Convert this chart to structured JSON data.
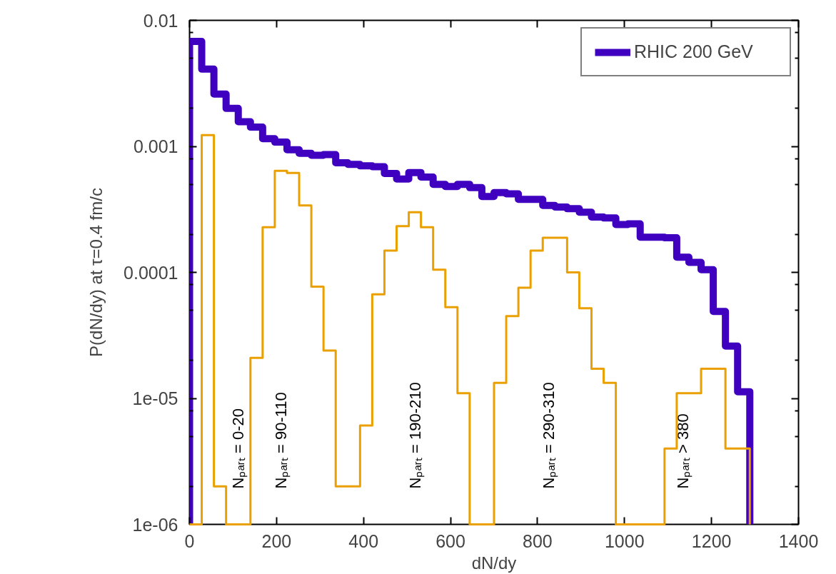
{
  "chart_data": {
    "type": "histogram",
    "xlabel": "dN/dy",
    "ylabel": "P(dN/dy) at τ=0.4 fm/c",
    "bins": [
      0,
      28,
      56,
      84,
      112,
      140,
      168,
      196,
      224,
      252,
      280,
      308,
      336,
      364,
      392,
      420,
      448,
      476,
      504,
      532,
      560,
      588,
      616,
      644,
      672,
      700,
      728,
      756,
      784,
      812,
      840,
      868,
      896,
      924,
      952,
      980,
      1008,
      1036,
      1064,
      1092,
      1120,
      1148,
      1176,
      1204,
      1232,
      1260,
      1288
    ],
    "series": [
      {
        "name": "RHIC 200 GeV",
        "color": "#4000c0",
        "values": [
          0.0068,
          0.0041,
          0.0026,
          0.002,
          0.00157,
          0.00142,
          0.00115,
          0.00108,
          0.00094,
          0.00088,
          0.00085,
          0.00086,
          0.00074,
          0.00072,
          0.0007,
          0.00069,
          0.00061,
          0.00055,
          0.00062,
          0.00057,
          0.0005,
          0.00048,
          0.0005,
          0.00047,
          0.0004,
          0.00043,
          0.00042,
          0.00038,
          0.00038,
          0.00034,
          0.00033,
          0.00032,
          0.0003,
          0.000275,
          0.00027,
          0.00024,
          0.000243,
          0.00019,
          0.00019,
          0.000188,
          0.000132,
          0.00012,
          0.000105,
          4.9e-05,
          2.6e-05,
          1.13e-05
        ]
      },
      {
        "color": "#eaa000",
        "values": [
          null,
          0.00123,
          2e-06,
          null,
          null,
          2.1e-05,
          0.000228,
          0.00064,
          0.000616,
          0.00034,
          7.7e-05,
          2.4e-05,
          2e-06,
          2e-06,
          6.1e-06,
          6.7e-05,
          0.000149,
          0.000233,
          0.0003,
          0.000228,
          0.000105,
          5.3e-05,
          1.1e-05,
          null,
          null,
          1.33e-05,
          4.5e-05,
          7.55e-05,
          0.000149,
          0.000188,
          0.000188,
          0.0001,
          5.2e-05,
          1.72e-05,
          1.33e-05,
          null,
          null,
          null,
          null,
          4e-06,
          1.1e-05,
          1.1e-05,
          1.72e-05,
          1.72e-05,
          4e-06,
          4e-06
        ]
      }
    ],
    "annotations": [
      "Nₚₐᵣₜ = 0-20",
      "Nₚₐᵣₜ = 90-110",
      "Nₚₐᵣₜ = 190-210",
      "Nₚₐᵣₜ = 290-310",
      "Nₚₐᵣₜ > 380"
    ],
    "xlim": [
      0,
      1400
    ],
    "xticks": [
      0,
      200,
      400,
      600,
      800,
      1000,
      1200,
      1400
    ],
    "ylim": [
      1e-06,
      0.01
    ],
    "yticks": [
      {
        "value": 1e-06,
        "label": "1e-06"
      },
      {
        "value": 2e-06,
        "label": null
      },
      {
        "value": 5e-06,
        "label": null
      },
      {
        "value": 8e-06,
        "label": null
      },
      {
        "value": 1e-05,
        "label": "1e-05"
      },
      {
        "value": 2e-05,
        "label": null
      },
      {
        "value": 5e-05,
        "label": null
      },
      {
        "value": 8e-05,
        "label": null
      },
      {
        "value": 0.0001,
        "label": "0.0001"
      },
      {
        "value": 0.0002,
        "label": null
      },
      {
        "value": 0.0005,
        "label": null
      },
      {
        "value": 0.0008,
        "label": null
      },
      {
        "value": 0.001,
        "label": "0.001"
      },
      {
        "value": 0.002,
        "label": null
      },
      {
        "value": 0.005,
        "label": null
      },
      {
        "value": 0.008,
        "label": null
      },
      {
        "value": 0.01,
        "label": "0.01"
      }
    ],
    "log": "y",
    "legend": "top right",
    "grid": false
  }
}
